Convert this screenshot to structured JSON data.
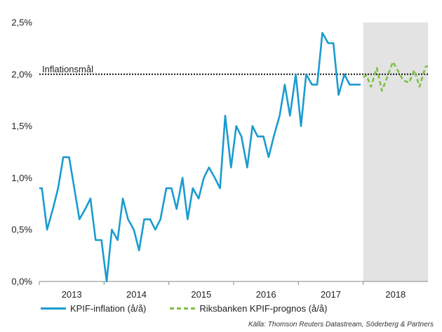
{
  "chart_data": {
    "type": "line",
    "ylim": [
      0,
      2.5
    ],
    "yticks": [
      "0,0%",
      "0,5%",
      "1,0%",
      "1,5%",
      "2,0%",
      "2,5%"
    ],
    "xlim": [
      2012.5,
      2018.5
    ],
    "xticks": [
      {
        "label": "2013",
        "at": 2013.0
      },
      {
        "label": "2014",
        "at": 2014.0
      },
      {
        "label": "2015",
        "at": 2015.0
      },
      {
        "label": "2016",
        "at": 2016.0
      },
      {
        "label": "2017",
        "at": 2017.0
      },
      {
        "label": "2018",
        "at": 2018.0
      }
    ],
    "forecast_region_start": 2017.5,
    "target": {
      "value": 2.0,
      "label": "Inflationsmål"
    },
    "colors": {
      "actual": "#1a9bd0",
      "forecast": "#7cc242",
      "forecast_band": "#e3e3e3",
      "target": "#111111"
    },
    "series": [
      {
        "name": "KPIF-inflation (å/å)",
        "style": "solid",
        "x": [
          2012.5,
          2012.54,
          2012.62,
          2012.71,
          2012.79,
          2012.87,
          2012.96,
          2013.04,
          2013.12,
          2013.21,
          2013.29,
          2013.37,
          2013.46,
          2013.54,
          2013.62,
          2013.71,
          2013.79,
          2013.87,
          2013.96,
          2014.04,
          2014.12,
          2014.21,
          2014.29,
          2014.37,
          2014.46,
          2014.54,
          2014.62,
          2014.71,
          2014.79,
          2014.87,
          2014.96,
          2015.04,
          2015.12,
          2015.21,
          2015.29,
          2015.37,
          2015.46,
          2015.54,
          2015.62,
          2015.71,
          2015.79,
          2015.87,
          2015.96,
          2016.04,
          2016.12,
          2016.21,
          2016.29,
          2016.37,
          2016.46,
          2016.54,
          2016.62,
          2016.71,
          2016.79,
          2016.87,
          2016.96,
          2017.04,
          2017.12,
          2017.21,
          2017.29,
          2017.37,
          2017.46
        ],
        "values": [
          0.9,
          0.9,
          0.5,
          0.7,
          0.9,
          1.2,
          1.2,
          0.9,
          0.6,
          0.7,
          0.8,
          0.4,
          0.4,
          0.0,
          0.5,
          0.4,
          0.8,
          0.6,
          0.5,
          0.3,
          0.6,
          0.6,
          0.5,
          0.6,
          0.9,
          0.9,
          0.7,
          1.0,
          0.6,
          0.9,
          0.8,
          1.0,
          1.1,
          1.0,
          0.9,
          1.6,
          1.1,
          1.5,
          1.4,
          1.1,
          1.5,
          1.4,
          1.4,
          1.2,
          1.4,
          1.6,
          1.9,
          1.6,
          2.0,
          1.5,
          2.0,
          1.9,
          1.9,
          2.4,
          2.3,
          2.3,
          1.8,
          2.0,
          1.9,
          1.9,
          1.9
        ]
      },
      {
        "name": "Riksbanken KPIF-prognos (å/å)",
        "style": "dashed",
        "x": [
          2017.5,
          2017.55,
          2017.62,
          2017.71,
          2017.79,
          2017.87,
          2017.96,
          2018.04,
          2018.12,
          2018.21,
          2018.29,
          2018.37,
          2018.46,
          2018.5
        ],
        "values": [
          1.97,
          1.99,
          1.88,
          2.06,
          1.84,
          1.97,
          2.12,
          2.03,
          1.94,
          1.92,
          2.04,
          1.88,
          2.07,
          2.08
        ]
      }
    ]
  },
  "legend": {
    "actual_label": "KPIF-inflation (å/å)",
    "forecast_label": "Riksbanken KPIF-prognos (å/å)"
  },
  "source": "Källa: Thomson Reuters Datastream, Söderberg & Partners"
}
